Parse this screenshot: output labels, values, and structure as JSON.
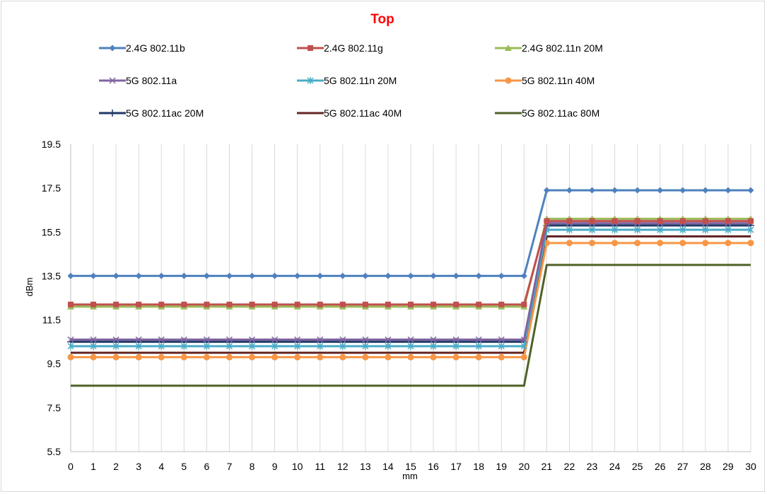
{
  "chart_data": {
    "type": "line",
    "title": "Top",
    "xlabel": "mm",
    "ylabel": "dBm",
    "x": [
      0,
      1,
      2,
      3,
      4,
      5,
      6,
      7,
      8,
      9,
      10,
      11,
      12,
      13,
      14,
      15,
      16,
      17,
      18,
      19,
      20,
      21,
      22,
      23,
      24,
      25,
      26,
      27,
      28,
      29,
      30
    ],
    "ylim": [
      5.5,
      19.5
    ],
    "yticks": [
      "5.5",
      "7.5",
      "9.5",
      "11.5",
      "13.5",
      "15.5",
      "17.5",
      "19.5"
    ],
    "grid": "vertical",
    "legend_position": "top",
    "series": [
      {
        "name": "2.4G 802.11b",
        "color": "#4f81bd",
        "marker": "diamond",
        "low": 13.5,
        "high": 17.4
      },
      {
        "name": "2.4G 802.11g",
        "color": "#c0504d",
        "marker": "square",
        "low": 12.2,
        "high": 16.0
      },
      {
        "name": "2.4G 802.11n 20M",
        "color": "#9bbb59",
        "marker": "triangle",
        "low": 12.1,
        "high": 16.1
      },
      {
        "name": "5G 802.11a",
        "color": "#8064a2",
        "marker": "x",
        "low": 10.6,
        "high": 15.9
      },
      {
        "name": "5G 802.11n 20M",
        "color": "#4bacc6",
        "marker": "star",
        "low": 10.3,
        "high": 15.6
      },
      {
        "name": "5G 802.11n 40M",
        "color": "#f79646",
        "marker": "circle",
        "low": 9.8,
        "high": 15.0
      },
      {
        "name": "5G 802.11ac 20M",
        "color": "#1f3864",
        "marker": "plus",
        "low": 10.5,
        "high": 15.8
      },
      {
        "name": "5G 802.11ac 40M",
        "color": "#632523",
        "marker": "none",
        "low": 10.0,
        "high": 15.3
      },
      {
        "name": "5G 802.11ac 80M",
        "color": "#4f6228",
        "marker": "none",
        "low": 8.5,
        "high": 14.0
      }
    ],
    "step_after_x": 20,
    "title_color": "#ff0000"
  }
}
